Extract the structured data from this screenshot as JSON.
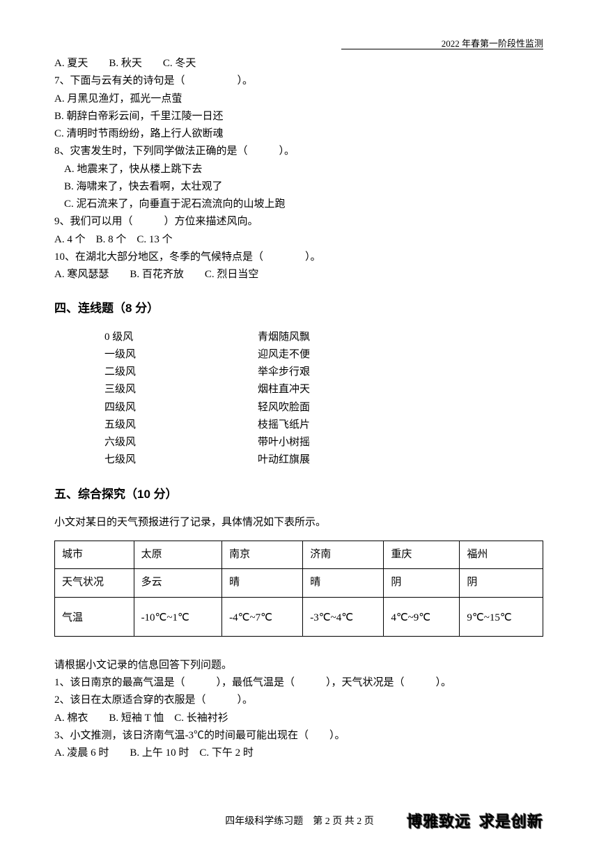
{
  "header": {
    "right_text": "2022 年春第一阶段性监测"
  },
  "questions": {
    "q6_opts": "A. 夏天　　B. 秋天　　C. 冬天",
    "q7": "7、下面与云有关的诗句是（　　　　　）。",
    "q7a": "A. 月黑见渔灯，孤光一点萤",
    "q7b": "B. 朝辞白帝彩云间，千里江陵一日还",
    "q7c": "C. 清明时节雨纷纷，路上行人欲断魂",
    "q8": "8、灾害发生时，下列同学做法正确的是（　　　）。",
    "q8a": "A. 地震来了，快从楼上跳下去",
    "q8b": "B. 海啸来了，快去看啊，太壮观了",
    "q8c": "C. 泥石流来了，向垂直于泥石流流向的山坡上跑",
    "q9": "9、我们可以用（　　　）方位来描述风向。",
    "q9_opts": "A. 4 个　B. 8 个　C. 13 个",
    "q10": "10、在湖北大部分地区，冬季的气候特点是（　　　　）。",
    "q10_opts": "A. 寒风瑟瑟　　B. 百花齐放　　C. 烈日当空"
  },
  "section4": {
    "title": "四、连线题（8 分）",
    "left": [
      "0 级风",
      "一级风",
      "二级风",
      "三级风",
      "四级风",
      "五级风",
      "六级风",
      "七级风"
    ],
    "right": [
      "青烟随风飘",
      "迎风走不便",
      "举伞步行艰",
      "烟柱直冲天",
      "轻风吹脸面",
      "枝摇飞纸片",
      "带叶小树摇",
      "叶动红旗展"
    ]
  },
  "section5": {
    "title": "五、综合探究（10 分）",
    "intro": "小文对某日的天气预报进行了记录，具体情况如下表所示。",
    "table": {
      "headers": [
        "城市",
        "太原",
        "南京",
        "济南",
        "重庆",
        "福州"
      ],
      "row1": [
        "天气状况",
        "多云",
        "晴",
        "晴",
        "阴",
        "阴"
      ],
      "row2": [
        "气温",
        "-10℃~1℃",
        "-4℃~7℃",
        "-3℃~4℃",
        "4℃~9℃",
        "9℃~15℃"
      ]
    },
    "post": "请根据小文记录的信息回答下列问题。",
    "q1": "1、该日南京的最高气温是（　　　），最低气温是（　　　），天气状况是（　　　）。",
    "q2": "2、该日在太原适合穿的衣服是（　　　）。",
    "q2_opts": "A. 棉衣　　B. 短袖 T 恤　C. 长袖衬衫",
    "q3": "3、小文推测，该日济南气温-3℃的时间最可能出现在（　　）。",
    "q3_opts": "A. 凌晨 6 时　　B. 上午 10 时　C. 下午 2 时"
  },
  "footer": {
    "text": "四年级科学练习题　第 2 页 共 2 页",
    "stamp1": "博雅致远",
    "stamp2": "求是创新"
  },
  "colors": {
    "text": "#000000",
    "background": "#ffffff",
    "border": "#000000"
  }
}
